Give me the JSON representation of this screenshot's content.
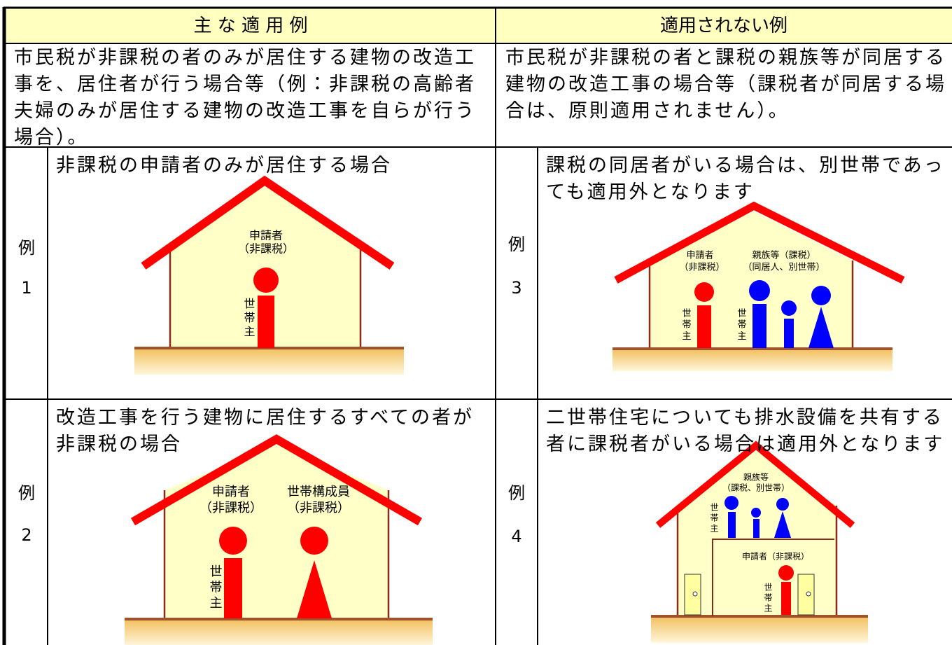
{
  "header": {
    "applicable": "主 な 適 用 例",
    "not_applicable": "適用されない例"
  },
  "description": {
    "applicable": "市民税が非課税の者のみが居住する建物の改造工事を、居住者が行う場合等（例：非課税の高齢者夫婦のみが居住する建物の改造工事を自らが行う場合）。",
    "not_applicable": "市民税が非課税の者と課税の親族等が同居する建物の改造工事の場合等（課税者が同居する場合は、原則適用されません）。"
  },
  "examples": [
    {
      "label": "例",
      "number": "1",
      "caption": "非課税の申請者のみが居住する場合",
      "labels": [
        "申請者",
        "（非課税）",
        "世帯主"
      ]
    },
    {
      "label": "例",
      "number": "2",
      "caption": "改造工事を行う建物に居住するすべての者が非課税の場合",
      "labels": [
        "申請者",
        "（非課税）",
        "世帯構成員",
        "（非課税）",
        "世帯主"
      ]
    },
    {
      "label": "例",
      "number": "3",
      "caption": "課税の同居者がいる場合は、別世帯であっても適用外となります",
      "labels": [
        "申請者",
        "（非課税）",
        "親族等（課税）",
        "（同居人、別世帯）",
        "世帯主",
        "世帯主"
      ]
    },
    {
      "label": "例",
      "number": "4",
      "caption": "二世帯住宅についても排水設備を共有する者に課税者がいる場合は適用外となります",
      "labels": [
        "親族等",
        "（課税、別世帯）",
        "世帯主",
        "申請者（非課税）",
        "世帯主"
      ]
    }
  ]
}
